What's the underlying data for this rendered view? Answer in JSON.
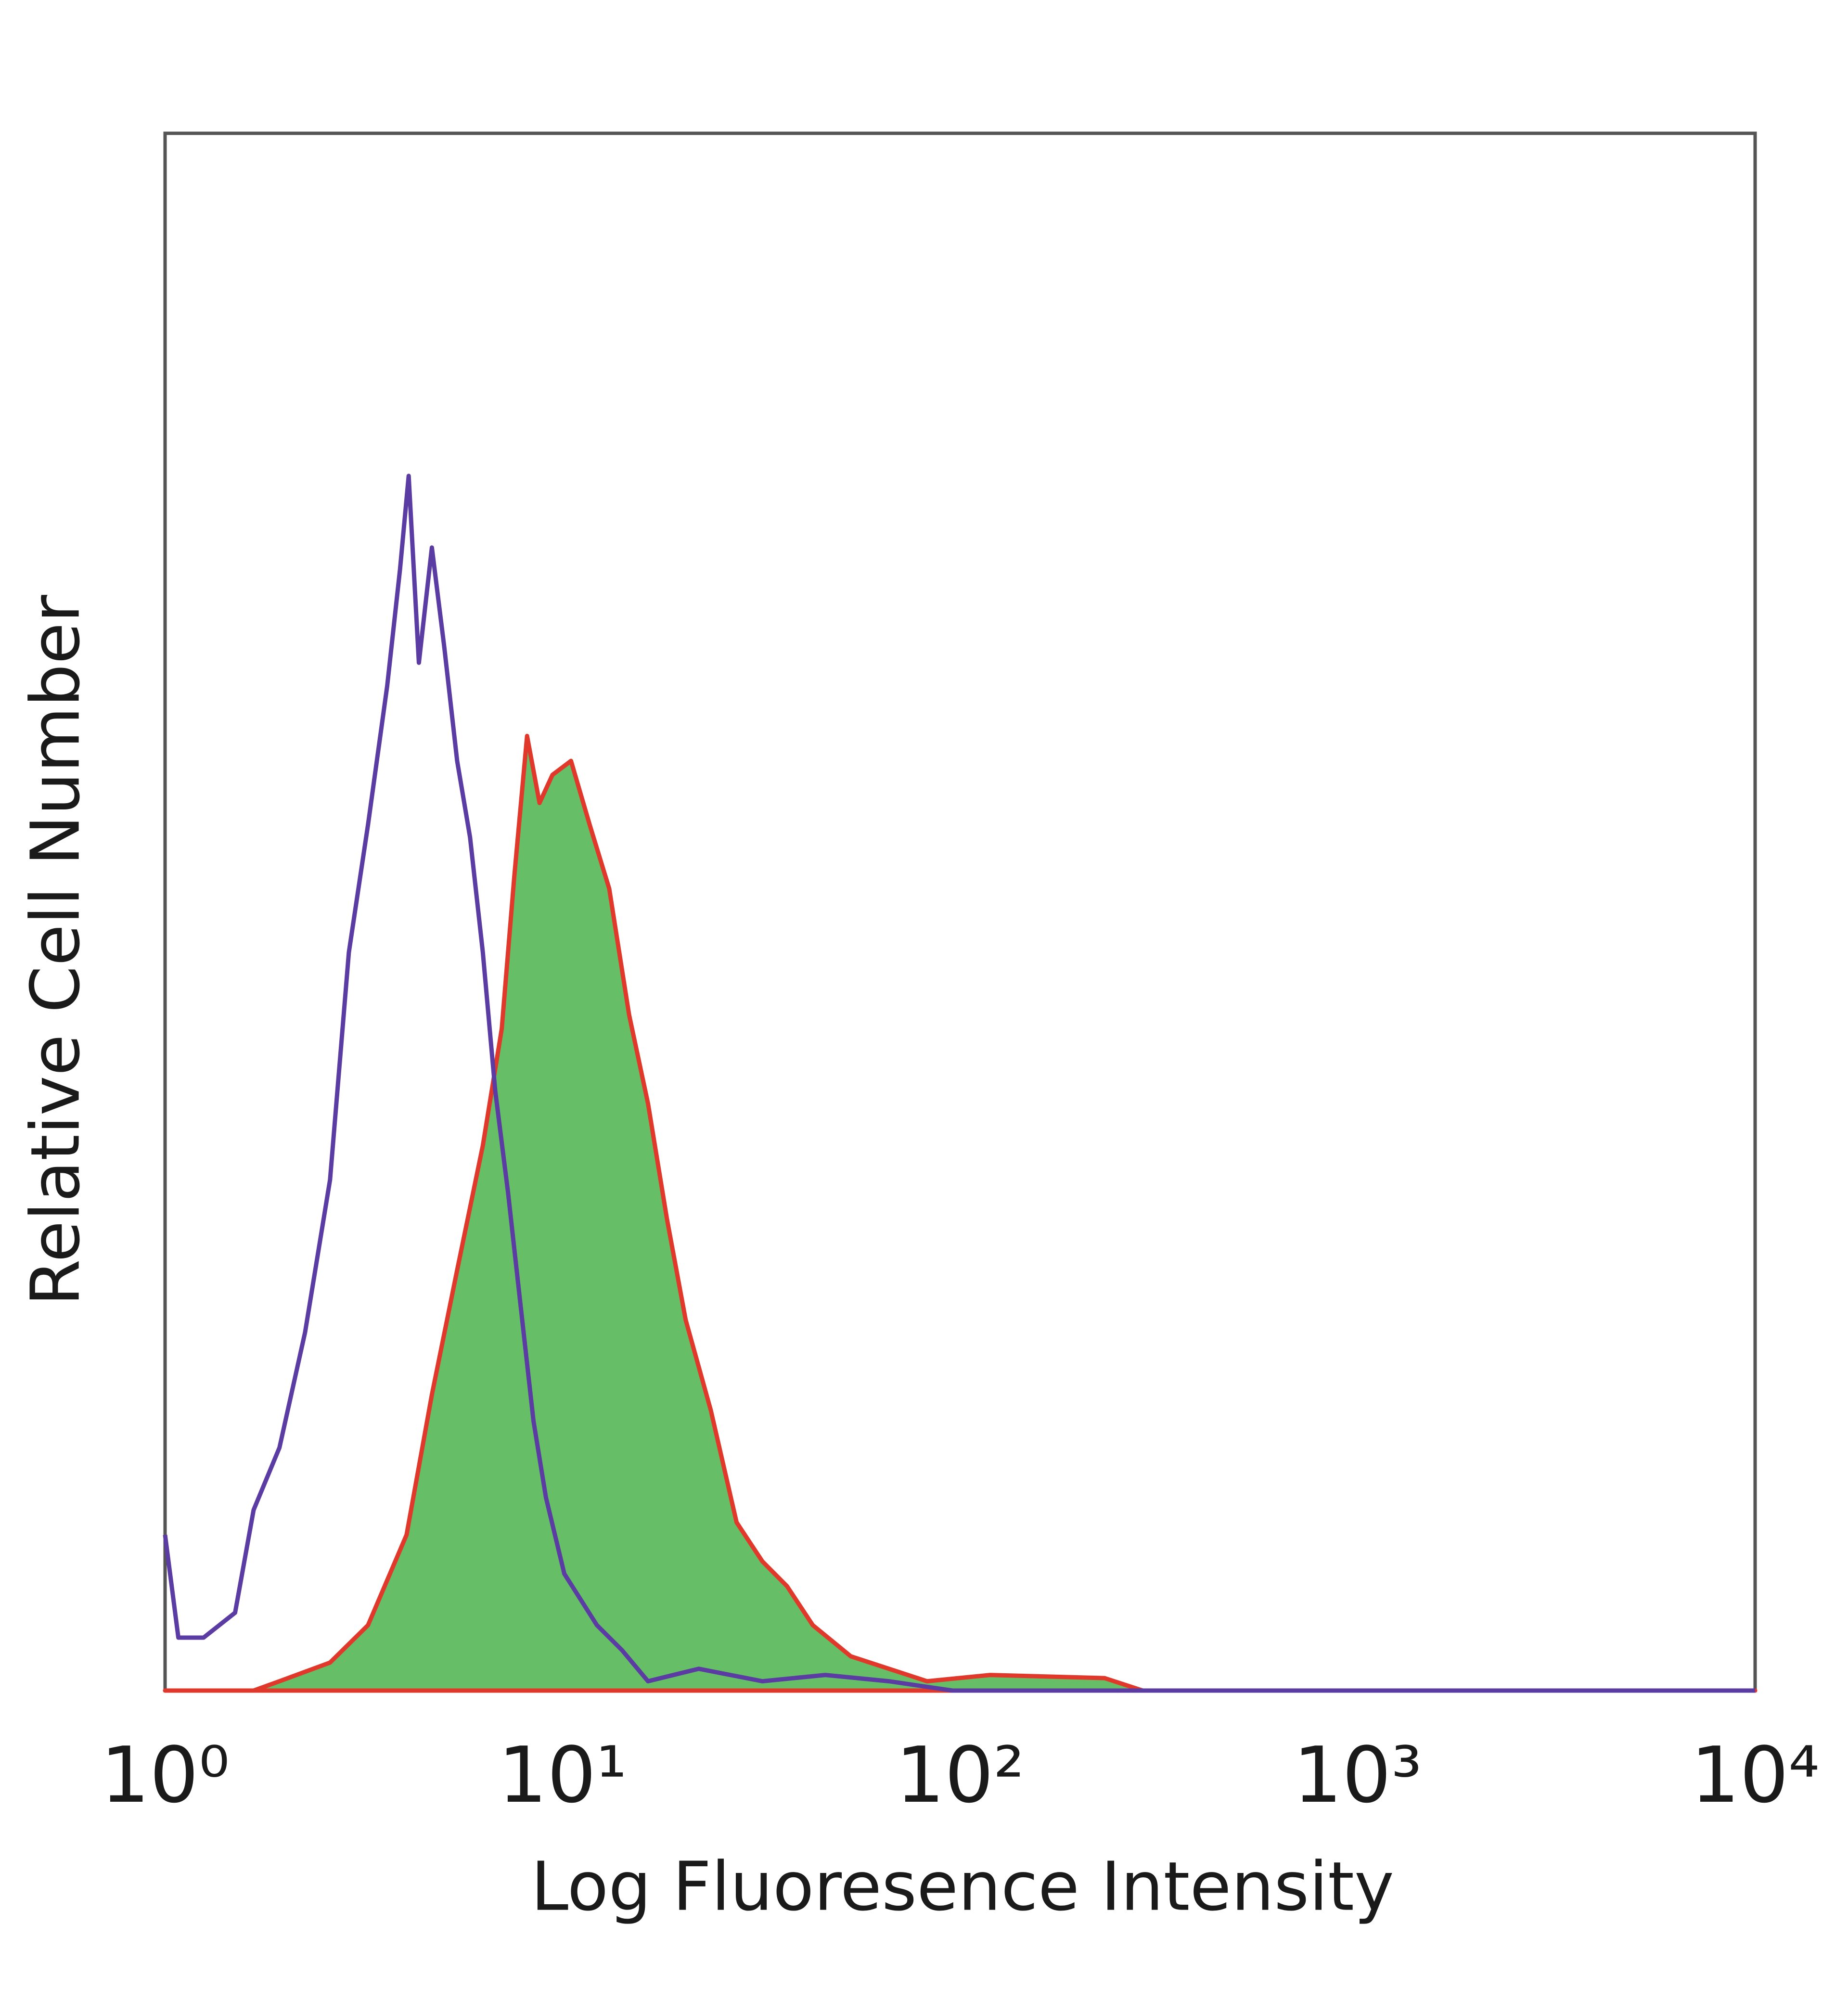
{
  "chart_data": {
    "type": "line",
    "x_label": "Log Fluoresence Intensity",
    "y_label": "Relative Cell Number",
    "xscale": "log",
    "xlim": [
      1,
      10000
    ],
    "ylim": [
      0,
      100
    ],
    "xticks": [
      {
        "value": 1,
        "label": "10⁰"
      },
      {
        "value": 10,
        "label": "10¹"
      },
      {
        "value": 100,
        "label": "10²"
      },
      {
        "value": 1000,
        "label": "10³"
      },
      {
        "value": 10000,
        "label": "10⁴"
      }
    ],
    "series": [
      {
        "color": "#e0392b",
        "fill": "#66bf66",
        "x": [
          1,
          1.67,
          1.94,
          2.6,
          3.24,
          4.05,
          4.69,
          5.43,
          6.3,
          7.03,
          7.56,
          8.14,
          8.75,
          9.43,
          10.5,
          11.7,
          13.1,
          14.7,
          16.4,
          18.3,
          20.4,
          23.6,
          27.4,
          31.8,
          36.7,
          42.6,
          53.1,
          66.2,
          82.6,
          119,
          231,
          288,
          10000
        ],
        "values": [
          0,
          0,
          0.6,
          1.8,
          4.2,
          10,
          19,
          27,
          35,
          42.5,
          52.3,
          61.3,
          57,
          58.8,
          59.7,
          55.6,
          51.5,
          43.4,
          37.7,
          30.3,
          23.8,
          18,
          10.8,
          8.3,
          6.7,
          4.2,
          2.2,
          1.4,
          0.6,
          1,
          0.8,
          0,
          0
        ]
      },
      {
        "color": "#5a3ca3",
        "x": [
          1,
          1.08,
          1.25,
          1.5,
          1.67,
          1.94,
          2.25,
          2.6,
          2.9,
          3.24,
          3.62,
          3.9,
          4.1,
          4.35,
          4.69,
          5.04,
          5.43,
          5.85,
          6.3,
          6.77,
          7.29,
          7.85,
          8.45,
          9.08,
          10.1,
          12.2,
          14.1,
          16.4,
          22,
          31.8,
          45.8,
          66.2,
          95.7,
          10000
        ],
        "values": [
          10,
          3.4,
          3.4,
          5,
          11.6,
          15.6,
          23,
          32.8,
          47.4,
          55.6,
          64.5,
          72,
          78,
          66,
          73.4,
          67,
          59.7,
          54.8,
          47.4,
          38.5,
          32,
          24.6,
          17.3,
          12.4,
          7.5,
          4.2,
          2.6,
          0.6,
          1.4,
          0.6,
          1,
          0.6,
          0,
          0
        ]
      }
    ]
  }
}
